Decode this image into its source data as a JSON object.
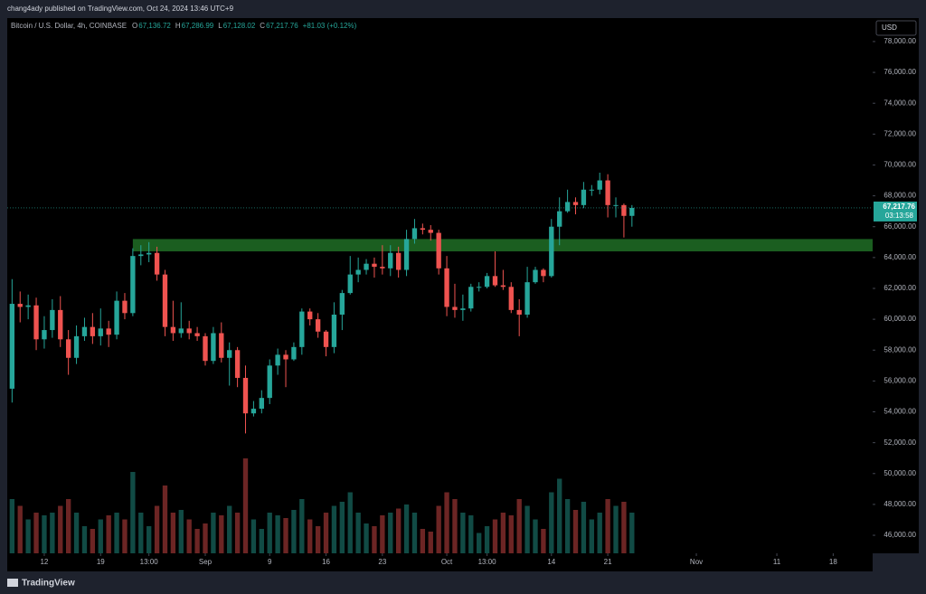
{
  "header": {
    "publisher": "chang4ady published on TradingView.com, Oct 24, 2024 13:46 UTC+9",
    "brand": "TradingView"
  },
  "chart_data": {
    "type": "candlestick",
    "symbol": "Bitcoin / U.S. Dollar, 4h, COINBASE",
    "ohlc": [
      {
        "key": "O",
        "value": "67,136.72"
      },
      {
        "key": "H",
        "value": "67,286.99"
      },
      {
        "key": "L",
        "value": "67,128.02"
      },
      {
        "key": "C",
        "value": "67,217.76"
      }
    ],
    "change": "+81.03 (+0.12%)",
    "currency": "USD",
    "last_price": {
      "value": 67217.76,
      "label": "67,217.76"
    },
    "countdown": "03:13:58",
    "up_color": "#26a69a",
    "down_color": "#ef5350",
    "open": [
      55500,
      61000,
      60800,
      60900,
      58700,
      59300,
      60600,
      58700,
      57500,
      58900,
      59500,
      58900,
      59400,
      59000,
      61200,
      60400,
      64100,
      64200,
      64300,
      62900,
      59500,
      59100,
      59400,
      59100,
      58900,
      57300,
      59100,
      57500,
      58000,
      56200,
      53900,
      54200,
      54900,
      57000,
      57700,
      57400,
      58200,
      60500,
      60000,
      59200,
      58200,
      60300,
      61700,
      62900,
      63200,
      63600,
      63400,
      63300,
      64300,
      63200,
      65200,
      65900,
      65800,
      65600,
      63300,
      60800,
      60600,
      60700,
      62100,
      62100,
      62800,
      62200,
      62100,
      60600,
      60300,
      62400,
      63200,
      62800,
      66000,
      67000,
      67600,
      67400,
      68400,
      68400,
      69000,
      67400,
      67400,
      66700
    ],
    "high": [
      62600,
      61800,
      61600,
      61400,
      60200,
      61300,
      61500,
      59300,
      59600,
      60100,
      60400,
      60700,
      59900,
      61800,
      61700,
      64600,
      64800,
      65000,
      64700,
      63200,
      61200,
      61100,
      59900,
      59500,
      59100,
      59500,
      59800,
      58500,
      58200,
      57000,
      54700,
      55400,
      57400,
      58100,
      58000,
      58500,
      60700,
      60700,
      60400,
      59300,
      61100,
      61900,
      64100,
      64000,
      63900,
      64000,
      64800,
      64800,
      64700,
      65800,
      66500,
      66200,
      66100,
      65800,
      64100,
      62300,
      61600,
      62300,
      62400,
      63000,
      64400,
      63200,
      62400,
      61300,
      63400,
      63400,
      63300,
      66500,
      67900,
      68400,
      67900,
      68900,
      68700,
      69500,
      69400,
      67900,
      67500,
      67400
    ],
    "low": [
      54600,
      59800,
      60000,
      58000,
      58100,
      58800,
      58200,
      56400,
      57100,
      58600,
      58400,
      58300,
      58200,
      58700,
      60000,
      60200,
      63500,
      63700,
      62500,
      58900,
      58600,
      58800,
      58700,
      58600,
      57000,
      57100,
      57200,
      55700,
      55600,
      52600,
      53700,
      53900,
      54500,
      56400,
      55600,
      57300,
      57700,
      59600,
      58800,
      57600,
      57800,
      59300,
      61600,
      62400,
      62900,
      62700,
      62900,
      62800,
      62700,
      62800,
      64900,
      65500,
      65100,
      62900,
      60200,
      60100,
      59900,
      60500,
      61800,
      62000,
      62100,
      61900,
      60400,
      58900,
      60100,
      62300,
      62400,
      62700,
      64800,
      66900,
      66800,
      67200,
      68000,
      68100,
      66600,
      66600,
      65300,
      66000
    ],
    "close": [
      61000,
      60800,
      60900,
      58700,
      59300,
      60600,
      58700,
      57500,
      58900,
      59500,
      58900,
      59400,
      59000,
      61200,
      60400,
      64100,
      64200,
      64300,
      62900,
      59500,
      59100,
      59400,
      59100,
      58900,
      57300,
      59100,
      57500,
      58000,
      56200,
      53900,
      54200,
      54900,
      57000,
      57700,
      57400,
      58200,
      60500,
      60000,
      59200,
      58200,
      60300,
      61700,
      62900,
      63200,
      63600,
      63400,
      63300,
      64300,
      63200,
      65200,
      65900,
      65800,
      65600,
      63300,
      60800,
      60600,
      60700,
      62100,
      62100,
      62800,
      62200,
      62100,
      60600,
      60300,
      62400,
      63200,
      62800,
      66000,
      67000,
      67600,
      67400,
      68400,
      68400,
      69000,
      67400,
      67400,
      66700,
      67217.76
    ],
    "volume": [
      40,
      35,
      25,
      30,
      28,
      30,
      35,
      40,
      30,
      20,
      18,
      25,
      28,
      30,
      25,
      60,
      30,
      20,
      35,
      50,
      30,
      32,
      25,
      18,
      22,
      30,
      28,
      35,
      30,
      70,
      25,
      18,
      30,
      28,
      26,
      32,
      40,
      25,
      20,
      30,
      35,
      38,
      45,
      30,
      22,
      20,
      28,
      30,
      33,
      36,
      30,
      18,
      16,
      35,
      45,
      40,
      30,
      28,
      15,
      20,
      25,
      30,
      28,
      40,
      35,
      25,
      18,
      45,
      55,
      40,
      32,
      38,
      25,
      30,
      40,
      35,
      38,
      30
    ],
    "vlim": [
      0,
      100
    ],
    "zone": {
      "x0": 15,
      "y0": 64400,
      "y1": 65200,
      "color": "#1b5e20"
    },
    "xlim": [
      -0.6,
      106.9
    ],
    "xticks": [
      {
        "value": 4,
        "label": "12"
      },
      {
        "value": 11,
        "label": "19"
      },
      {
        "value": 17,
        "label": "13:00"
      },
      {
        "value": 24,
        "label": "Sep"
      },
      {
        "value": 32,
        "label": "9"
      },
      {
        "value": 39,
        "label": "16"
      },
      {
        "value": 46,
        "label": "23"
      },
      {
        "value": 54,
        "label": "Oct"
      },
      {
        "value": 59,
        "label": "13:00"
      },
      {
        "value": 67,
        "label": "14"
      },
      {
        "value": 74,
        "label": "21"
      },
      {
        "value": 85,
        "label": "Nov"
      },
      {
        "value": 95,
        "label": "11"
      },
      {
        "value": 102,
        "label": "18"
      }
    ],
    "ylim": [
      44830,
      79520
    ],
    "yticks": [
      {
        "value": 46000,
        "label": "46,000.00"
      },
      {
        "value": 48000,
        "label": "48,000.00"
      },
      {
        "value": 50000,
        "label": "50,000.00"
      },
      {
        "value": 52000,
        "label": "52,000.00"
      },
      {
        "value": 54000,
        "label": "54,000.00"
      },
      {
        "value": 56000,
        "label": "56,000.00"
      },
      {
        "value": 58000,
        "label": "58,000.00"
      },
      {
        "value": 60000,
        "label": "60,000.00"
      },
      {
        "value": 62000,
        "label": "62,000.00"
      },
      {
        "value": 64000,
        "label": "64,000.00"
      },
      {
        "value": 66000,
        "label": "66,000.00"
      },
      {
        "value": 68000,
        "label": "68,000.00"
      },
      {
        "value": 70000,
        "label": "70,000.00"
      },
      {
        "value": 72000,
        "label": "72,000.00"
      },
      {
        "value": 74000,
        "label": "74,000.00"
      },
      {
        "value": 76000,
        "label": "76,000.00"
      },
      {
        "value": 78000,
        "label": "78,000.00"
      }
    ]
  }
}
